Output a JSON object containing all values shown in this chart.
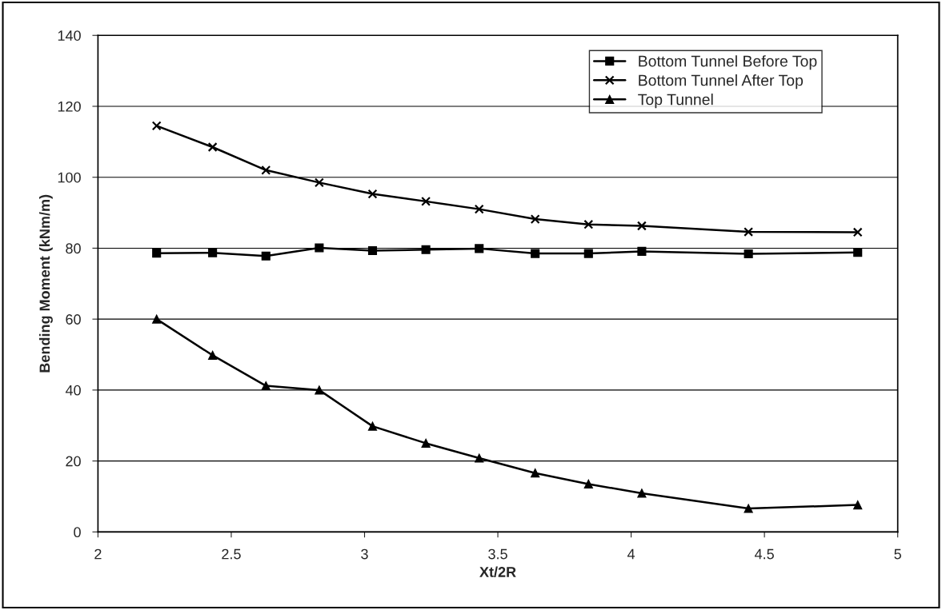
{
  "chart_data": {
    "type": "line",
    "xlabel": "Xt/2R",
    "ylabel": "Bending Moment (kNm/m)",
    "x": [
      2.22,
      2.43,
      2.63,
      2.83,
      3.03,
      3.23,
      3.43,
      3.64,
      3.84,
      4.04,
      4.44,
      4.85
    ],
    "series": [
      {
        "name": "Bottom Tunnel Before Top",
        "color": "#000000",
        "marker": "square",
        "values": [
          78.6,
          78.7,
          77.8,
          80.1,
          79.3,
          79.6,
          79.9,
          78.5,
          78.5,
          79.1,
          78.4,
          78.8
        ]
      },
      {
        "name": "Bottom Tunnel After Top",
        "color": "#000000",
        "marker": "cross",
        "values": [
          114.5,
          108.5,
          102,
          98.5,
          95.3,
          93.2,
          91,
          88.2,
          86.7,
          86.3,
          84.6,
          84.5
        ]
      },
      {
        "name": "Top Tunnel",
        "color": "#000000",
        "marker": "triangle",
        "values": [
          60,
          49.8,
          41.2,
          40,
          29.8,
          25,
          20.8,
          16.6,
          13.5,
          10.9,
          6.6,
          7.6
        ]
      }
    ],
    "xlim": [
      2,
      5
    ],
    "xticks": [
      2,
      2.5,
      3,
      3.5,
      4,
      4.5,
      5
    ],
    "ylim": [
      0,
      140
    ],
    "yticks": [
      0,
      20,
      40,
      60,
      80,
      100,
      120,
      140
    ],
    "grid": "y",
    "legend": "top right",
    "line_style": "solid"
  }
}
